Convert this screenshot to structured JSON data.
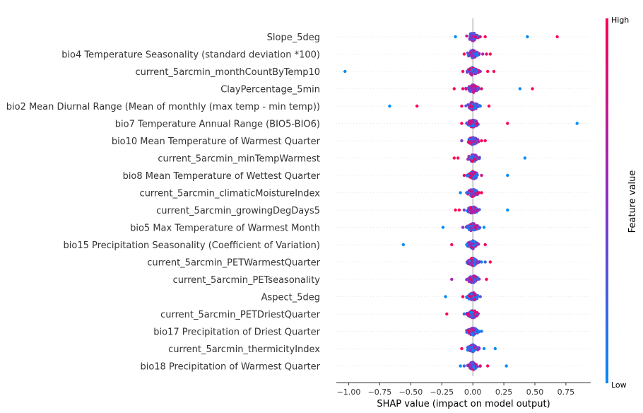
{
  "chart_data": {
    "type": "scatter",
    "subtype": "shap-beeswarm",
    "title": "",
    "xlabel": "SHAP value (impact on model output)",
    "xlim": [
      -1.1,
      0.95
    ],
    "xticks": [
      -1.0,
      -0.75,
      -0.5,
      -0.25,
      0.0,
      0.25,
      0.5,
      0.75
    ],
    "xtick_labels": [
      "−1.00",
      "−0.75",
      "−0.50",
      "−0.25",
      "0.00",
      "0.25",
      "0.50",
      "0.75"
    ],
    "grid": false,
    "colorbar": {
      "label": "Feature value",
      "high_label": "High",
      "low_label": "Low",
      "high_color": "#ff0052",
      "mid_color": "#8b2fc9",
      "low_color": "#008bfb"
    },
    "features": [
      {
        "name": "Slope_5deg",
        "outliers": [
          [
            -0.14,
            0.0
          ],
          [
            0.44,
            0.0
          ],
          [
            0.68,
            1.0
          ],
          [
            0.02,
            0.9
          ],
          [
            0.06,
            0.8
          ],
          [
            0.1,
            1.0
          ]
        ]
      },
      {
        "name": "bio4 Temperature Seasonality (standard deviation *100)",
        "outliers": [
          [
            -0.07,
            1.0
          ],
          [
            0.11,
            0.9
          ],
          [
            0.14,
            1.0
          ],
          [
            0.08,
            0.6
          ]
        ]
      },
      {
        "name": "current_5arcmin_monthCountByTemp10",
        "outliers": [
          [
            -1.03,
            0.0
          ],
          [
            -0.08,
            1.0
          ],
          [
            0.12,
            1.0
          ],
          [
            0.17,
            1.0
          ],
          [
            0.06,
            0.5
          ]
        ]
      },
      {
        "name": "ClayPercentage_5min",
        "outliers": [
          [
            -0.15,
            1.0
          ],
          [
            -0.08,
            0.9
          ],
          [
            0.07,
            0.9
          ],
          [
            0.38,
            0.0
          ],
          [
            0.48,
            1.0
          ]
        ]
      },
      {
        "name": "bio2 Mean Diurnal Range (Mean of monthly (max temp - min temp))",
        "outliers": [
          [
            -0.67,
            0.0
          ],
          [
            -0.45,
            1.0
          ],
          [
            -0.09,
            1.0
          ],
          [
            0.06,
            0.1
          ],
          [
            0.13,
            1.0
          ]
        ]
      },
      {
        "name": "bio7 Temperature Annual Range (BIO5-BIO6)",
        "outliers": [
          [
            -0.09,
            1.0
          ],
          [
            0.28,
            1.0
          ],
          [
            0.84,
            0.0
          ],
          [
            -0.05,
            0.3
          ]
        ]
      },
      {
        "name": "bio10 Mean Temperature of Warmest Quarter",
        "outliers": [
          [
            -0.09,
            0.4
          ],
          [
            0.07,
            1.0
          ],
          [
            0.1,
            1.0
          ]
        ]
      },
      {
        "name": "current_5arcmin_minTempWarmest",
        "outliers": [
          [
            -0.15,
            1.0
          ],
          [
            -0.12,
            1.0
          ],
          [
            0.42,
            0.0
          ],
          [
            0.05,
            0.6
          ]
        ]
      },
      {
        "name": "bio8 Mean Temperature of Wettest Quarter",
        "outliers": [
          [
            -0.07,
            0.9
          ],
          [
            0.07,
            0.8
          ],
          [
            0.28,
            0.0
          ]
        ]
      },
      {
        "name": "current_5arcmin_climaticMoistureIndex",
        "outliers": [
          [
            -0.1,
            0.0
          ],
          [
            -0.05,
            0.2
          ],
          [
            0.07,
            1.0
          ],
          [
            0.05,
            0.9
          ]
        ]
      },
      {
        "name": "current_5arcmin_growingDegDays5",
        "outliers": [
          [
            -0.14,
            1.0
          ],
          [
            -0.11,
            1.0
          ],
          [
            -0.07,
            0.4
          ],
          [
            0.28,
            0.0
          ],
          [
            0.04,
            0.6
          ]
        ]
      },
      {
        "name": "bio5 Max Temperature of Warmest Month",
        "outliers": [
          [
            -0.24,
            0.0
          ],
          [
            -0.08,
            0.5
          ],
          [
            0.05,
            0.4
          ],
          [
            0.09,
            0.0
          ]
        ]
      },
      {
        "name": "bio15 Precipitation Seasonality (Coefficient of Variation)",
        "outliers": [
          [
            -0.56,
            0.0
          ],
          [
            -0.17,
            1.0
          ],
          [
            -0.05,
            0.0
          ],
          [
            0.1,
            1.0
          ]
        ]
      },
      {
        "name": "current_5arcmin_PETWarmestQuarter",
        "outliers": [
          [
            0.07,
            0.0
          ],
          [
            0.1,
            0.2
          ],
          [
            0.14,
            1.0
          ],
          [
            0.04,
            0.5
          ]
        ]
      },
      {
        "name": "current_5arcmin_PETseasonality",
        "outliers": [
          [
            -0.17,
            0.6
          ],
          [
            0.11,
            1.0
          ],
          [
            0.04,
            0.3
          ]
        ]
      },
      {
        "name": "Aspect_5deg",
        "outliers": [
          [
            -0.22,
            0.0
          ],
          [
            -0.08,
            1.0
          ],
          [
            0.06,
            0.3
          ]
        ]
      },
      {
        "name": "current_5arcmin_PETDriestQuarter",
        "outliers": [
          [
            -0.21,
            1.0
          ],
          [
            -0.07,
            0.2
          ],
          [
            -0.04,
            0.9
          ]
        ]
      },
      {
        "name": "bio17 Precipitation of Driest Quarter",
        "outliers": [
          [
            0.05,
            0.0
          ],
          [
            0.07,
            0.1
          ],
          [
            -0.03,
            1.0
          ]
        ]
      },
      {
        "name": "current_5arcmin_thermicityIndex",
        "outliers": [
          [
            -0.09,
            1.0
          ],
          [
            0.09,
            0.0
          ],
          [
            0.18,
            0.0
          ],
          [
            0.05,
            0.5
          ]
        ]
      },
      {
        "name": "bio18 Precipitation of Warmest Quarter",
        "outliers": [
          [
            -0.1,
            0.0
          ],
          [
            -0.07,
            0.2
          ],
          [
            0.12,
            1.0
          ],
          [
            0.27,
            0.0
          ],
          [
            0.06,
            0.9
          ]
        ]
      }
    ]
  }
}
